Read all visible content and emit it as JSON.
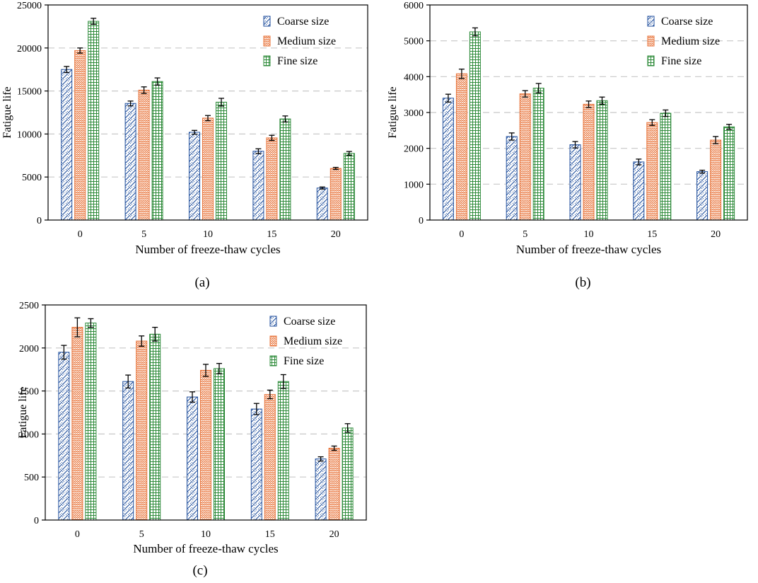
{
  "chart_data": [
    {
      "panel_label": "(a)",
      "type": "bar",
      "title": "",
      "xlabel": "Number of freeze-thaw cycles",
      "ylabel": "Fatigue life",
      "categories": [
        "0",
        "5",
        "10",
        "15",
        "20"
      ],
      "ylim": [
        0,
        25000
      ],
      "yticks": [
        0,
        5000,
        10000,
        15000,
        20000,
        25000
      ],
      "grid": "horizontal dashed",
      "legend_position": "top-right",
      "series": [
        {
          "name": "Coarse size",
          "values": [
            17500,
            13550,
            10200,
            8000,
            3720
          ],
          "errors": [
            350,
            280,
            220,
            280,
            120
          ]
        },
        {
          "name": "Medium size",
          "values": [
            19700,
            15100,
            11850,
            9550,
            6000
          ],
          "errors": [
            300,
            380,
            300,
            300,
            120
          ]
        },
        {
          "name": "Fine size",
          "values": [
            23100,
            16100,
            13700,
            11750,
            7750
          ],
          "errors": [
            350,
            420,
            450,
            350,
            220
          ]
        }
      ]
    },
    {
      "panel_label": "(b)",
      "type": "bar",
      "title": "",
      "xlabel": "Number of freeze-thaw cycles",
      "ylabel": "Fatigue life",
      "categories": [
        "0",
        "5",
        "10",
        "15",
        "20"
      ],
      "ylim": [
        0,
        6000
      ],
      "yticks": [
        0,
        1000,
        2000,
        3000,
        4000,
        5000,
        6000
      ],
      "grid": "horizontal dashed",
      "legend_position": "top-right",
      "series": [
        {
          "name": "Coarse size",
          "values": [
            3400,
            2330,
            2100,
            1620,
            1350
          ],
          "errors": [
            110,
            100,
            90,
            80,
            40
          ]
        },
        {
          "name": "Medium size",
          "values": [
            4080,
            3520,
            3230,
            2720,
            2230
          ],
          "errors": [
            130,
            90,
            90,
            80,
            100
          ]
        },
        {
          "name": "Fine size",
          "values": [
            5250,
            3680,
            3330,
            2980,
            2600
          ],
          "errors": [
            110,
            130,
            100,
            90,
            70
          ]
        }
      ]
    },
    {
      "panel_label": "(c)",
      "type": "bar",
      "title": "",
      "xlabel": "Number of freeze-thaw cycles",
      "ylabel": "Fatigue life",
      "categories": [
        "0",
        "5",
        "10",
        "15",
        "20"
      ],
      "ylim": [
        0,
        2500
      ],
      "yticks": [
        0,
        500,
        1000,
        1500,
        2000,
        2500
      ],
      "grid": "horizontal dashed",
      "legend_position": "top-right",
      "series": [
        {
          "name": "Coarse size",
          "values": [
            1950,
            1610,
            1430,
            1290,
            710
          ],
          "errors": [
            80,
            75,
            60,
            65,
            25
          ]
        },
        {
          "name": "Medium size",
          "values": [
            2240,
            2080,
            1740,
            1460,
            835
          ],
          "errors": [
            110,
            60,
            70,
            50,
            25
          ]
        },
        {
          "name": "Fine size",
          "values": [
            2290,
            2160,
            1760,
            1610,
            1070
          ],
          "errors": [
            50,
            80,
            60,
            80,
            50
          ]
        }
      ]
    }
  ],
  "colors": {
    "coarse": "#1f4e9c",
    "medium": "#e8743b",
    "fine": "#2e8b3a",
    "grid": "#c8c8c8",
    "axis": "#000000"
  }
}
